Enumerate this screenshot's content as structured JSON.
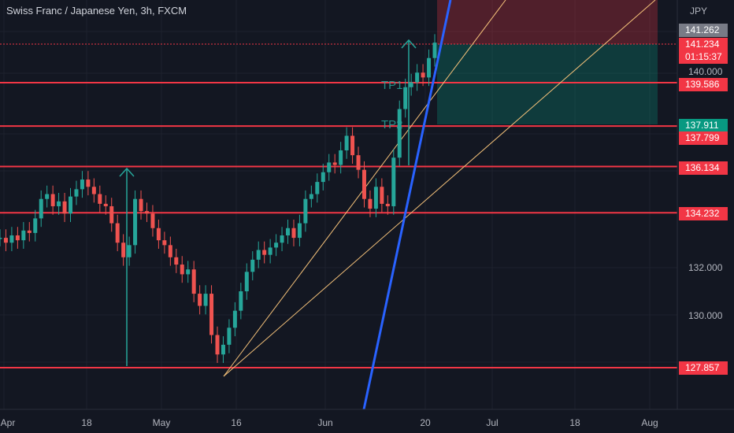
{
  "header": {
    "symbol_title": "Swiss Franc / Japanese Yen, 3h, FXCM",
    "currency": "JPY"
  },
  "labels": {
    "tp1": "TP1",
    "tp2": "TP2"
  },
  "price_tags": [
    {
      "text": "141.262",
      "color": "#787b86"
    },
    {
      "text": "141.234",
      "color": "#f23645"
    },
    {
      "text": "01:15:37",
      "color": "#f23645"
    },
    {
      "text": "139.586",
      "color": "#f23645"
    },
    {
      "text": "137.911",
      "color": "#089981"
    },
    {
      "text": "137.799",
      "color": "#f23645"
    },
    {
      "text": "136.134",
      "color": "#f23645"
    },
    {
      "text": "134.232",
      "color": "#f23645"
    },
    {
      "text": "127.857",
      "color": "#f23645"
    }
  ],
  "chart_data": {
    "type": "line",
    "title": "Swiss Franc / Japanese Yen, 3h, FXCM",
    "y_ticks": [
      "140.000",
      "132.000",
      "130.000"
    ],
    "x_ticks": [
      "Apr",
      "18",
      "May",
      "16",
      "Jun",
      "20",
      "Jul",
      "18",
      "Aug"
    ],
    "horizontal_levels": [
      139.586,
      137.799,
      136.134,
      134.232,
      127.857
    ],
    "series": [
      {
        "values": [
          133.2,
          133.0,
          133.3,
          133.1,
          133.5,
          133.4,
          134.0,
          134.8,
          135.0,
          134.5,
          134.7,
          134.2,
          134.9,
          135.2,
          135.6,
          135.3,
          135.0,
          134.6,
          134.5,
          133.8,
          133.0,
          132.4,
          132.9,
          134.8,
          134.3,
          134.2,
          133.6,
          133.1,
          132.9,
          132.4,
          132.1,
          131.7,
          131.9,
          130.9,
          130.4,
          130.9,
          129.2,
          128.4,
          128.8,
          129.5,
          130.2,
          131.0,
          131.8,
          132.3,
          132.7,
          132.5,
          132.8,
          133.0,
          133.3,
          133.6,
          133.2,
          133.8,
          134.8,
          135.0,
          135.5,
          135.9,
          136.3,
          136.2,
          136.8,
          137.4,
          136.6,
          136.0,
          134.8,
          134.4,
          135.3,
          134.6,
          134.5,
          136.5,
          138.5,
          139.4,
          139.6,
          140.0,
          139.8,
          140.6,
          141.234
        ]
      }
    ]
  }
}
